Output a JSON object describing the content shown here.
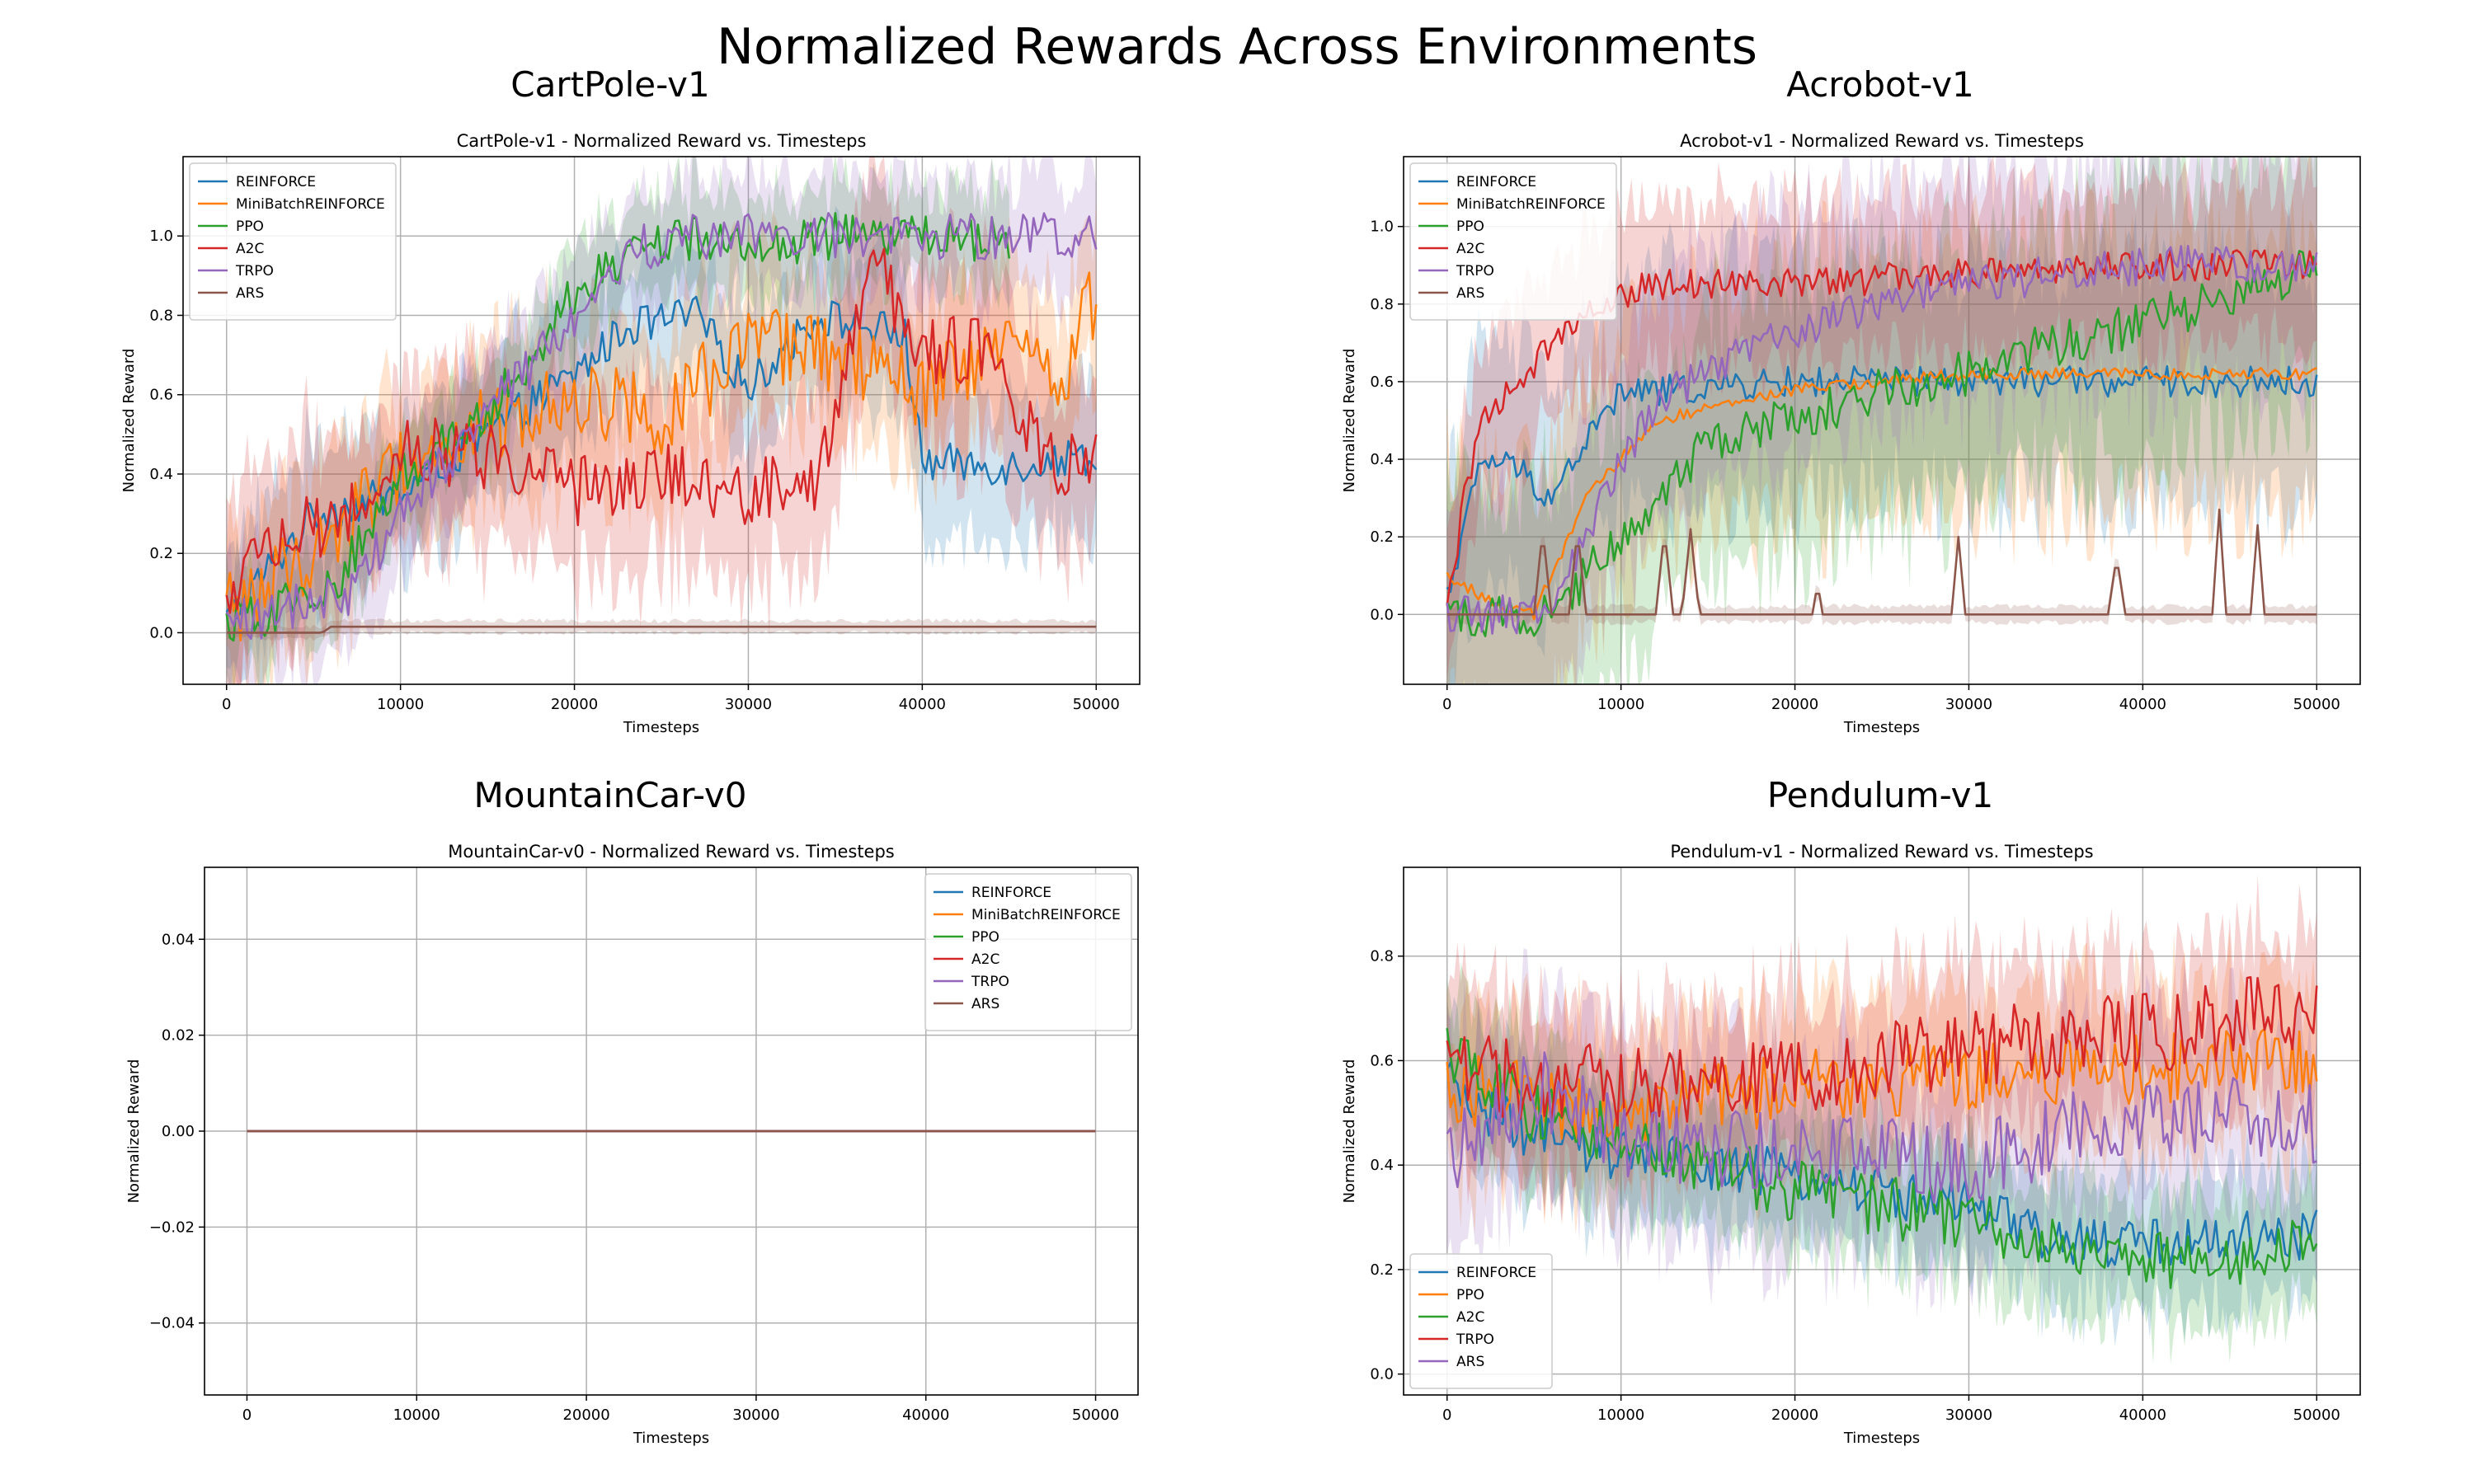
{
  "figure": {
    "suptitle": "Normalized Rewards Across Environments"
  },
  "chart_data": [
    {
      "id": "cartpole",
      "type": "line",
      "panel_title": "CartPole-v1",
      "title": "CartPole-v1 - Normalized Reward vs. Timesteps",
      "xlabel": "Timesteps",
      "ylabel": "Normalized Reward",
      "xlim": [
        -2500,
        52500
      ],
      "ylim": [
        -0.13,
        1.2
      ],
      "xticks": [
        0,
        10000,
        20000,
        30000,
        40000,
        50000
      ],
      "yticks": [
        0.0,
        0.2,
        0.4,
        0.6,
        0.8,
        1.0
      ],
      "ytick_labels": [
        "0.0",
        "0.2",
        "0.4",
        "0.6",
        "0.8",
        "1.0"
      ],
      "grid": true,
      "legend_position": "top-left",
      "series": [
        {
          "name": "REINFORCE",
          "color": "#1f77b4",
          "noise": 0.05,
          "band": 0.18,
          "x": [
            0,
            5000,
            10000,
            15000,
            20000,
            23000,
            27000,
            30000,
            34000,
            39000,
            40000,
            45000,
            50000
          ],
          "y": [
            0.03,
            0.3,
            0.35,
            0.5,
            0.65,
            0.77,
            0.8,
            0.62,
            0.8,
            0.75,
            0.43,
            0.42,
            0.45
          ]
        },
        {
          "name": "MiniBatchREINFORCE",
          "color": "#ff7f0e",
          "noise": 0.1,
          "band": 0.2,
          "x": [
            0,
            5000,
            10000,
            15000,
            20000,
            25000,
            30000,
            35000,
            40000,
            45000,
            48000,
            50000
          ],
          "y": [
            0.05,
            0.2,
            0.42,
            0.52,
            0.6,
            0.55,
            0.72,
            0.7,
            0.6,
            0.72,
            0.65,
            0.85
          ]
        },
        {
          "name": "PPO",
          "color": "#2ca02c",
          "noise": 0.06,
          "band": 0.12,
          "x": [
            0,
            6000,
            10000,
            15000,
            20000,
            23000,
            26000,
            30000,
            35000,
            40000,
            45000
          ],
          "y": [
            0.02,
            0.1,
            0.4,
            0.55,
            0.85,
            0.95,
            1.0,
            0.97,
            1.0,
            1.0,
            0.99
          ]
        },
        {
          "name": "A2C",
          "color": "#d62728",
          "noise": 0.09,
          "band": 0.22,
          "x": [
            0,
            3000,
            7000,
            10000,
            15000,
            20000,
            25000,
            30000,
            34000,
            37000,
            40000,
            44000,
            47000,
            50000
          ],
          "y": [
            0.05,
            0.25,
            0.3,
            0.45,
            0.45,
            0.35,
            0.4,
            0.35,
            0.4,
            0.95,
            0.7,
            0.72,
            0.42,
            0.42
          ]
        },
        {
          "name": "TRPO",
          "color": "#9467bd",
          "noise": 0.06,
          "band": 0.15,
          "x": [
            0,
            7000,
            11000,
            16000,
            20000,
            24000,
            27000,
            30000,
            40000,
            50000
          ],
          "y": [
            0.02,
            0.1,
            0.35,
            0.6,
            0.8,
            0.97,
            1.0,
            1.0,
            1.0,
            1.0
          ]
        },
        {
          "name": "ARS",
          "color": "#8c564b",
          "noise": 0.0,
          "band": 0.015,
          "x": [
            0,
            3000,
            5500,
            6000,
            50000
          ],
          "y": [
            0.0,
            0.0,
            0.0,
            0.015,
            0.015
          ]
        }
      ]
    },
    {
      "id": "acrobot",
      "type": "line",
      "panel_title": "Acrobot-v1",
      "title": "Acrobot-v1 - Normalized Reward vs. Timesteps",
      "xlabel": "Timesteps",
      "ylabel": "Normalized Reward",
      "xlim": [
        -2500,
        52500
      ],
      "ylim": [
        -0.18,
        1.18
      ],
      "xticks": [
        0,
        10000,
        20000,
        30000,
        40000,
        50000
      ],
      "yticks": [
        0.0,
        0.2,
        0.4,
        0.6,
        0.8,
        1.0
      ],
      "ytick_labels": [
        "0.0",
        "0.2",
        "0.4",
        "0.6",
        "0.8",
        "1.0"
      ],
      "grid": true,
      "legend_position": "top-left",
      "series": [
        {
          "name": "REINFORCE",
          "color": "#1f77b4",
          "noise": 0.04,
          "band": 0.3,
          "x": [
            0,
            2000,
            4000,
            6000,
            8000,
            10000,
            20000,
            30000,
            40000,
            50000
          ],
          "y": [
            0.05,
            0.4,
            0.38,
            0.3,
            0.45,
            0.57,
            0.6,
            0.6,
            0.6,
            0.6
          ]
        },
        {
          "name": "MiniBatchREINFORCE",
          "color": "#ff7f0e",
          "noise": 0.015,
          "band": 0.35,
          "x": [
            0,
            3000,
            5000,
            8000,
            12000,
            20000,
            30000,
            40000,
            50000
          ],
          "y": [
            0.1,
            0.02,
            0.0,
            0.3,
            0.5,
            0.58,
            0.62,
            0.62,
            0.62
          ]
        },
        {
          "name": "PPO",
          "color": "#2ca02c",
          "noise": 0.06,
          "band": 0.35,
          "x": [
            0,
            6000,
            10000,
            15000,
            20000,
            25000,
            30000,
            35000,
            40000,
            45000,
            50000
          ],
          "y": [
            0.0,
            0.0,
            0.2,
            0.45,
            0.5,
            0.58,
            0.62,
            0.7,
            0.75,
            0.82,
            0.9
          ]
        },
        {
          "name": "A2C",
          "color": "#d62728",
          "noise": 0.04,
          "band": 0.2,
          "x": [
            0,
            1000,
            2000,
            5000,
            8000,
            12000,
            20000,
            30000,
            40000,
            50000
          ],
          "y": [
            0.0,
            0.3,
            0.5,
            0.65,
            0.8,
            0.85,
            0.85,
            0.88,
            0.9,
            0.9
          ]
        },
        {
          "name": "TRPO",
          "color": "#9467bd",
          "noise": 0.05,
          "band": 0.3,
          "x": [
            0,
            6000,
            9000,
            12000,
            18000,
            25000,
            30000,
            40000,
            50000
          ],
          "y": [
            0.0,
            0.0,
            0.3,
            0.55,
            0.7,
            0.8,
            0.85,
            0.9,
            0.9
          ]
        },
        {
          "name": "ARS",
          "color": "#8c564b",
          "noise": 0.0,
          "band": 0.02,
          "x": [
            0,
            1000,
            5000,
            5500,
            6000,
            7000,
            7500,
            8000,
            12000,
            12500,
            13000,
            13500,
            14000,
            14500,
            21000,
            21300,
            21600,
            29000,
            29400,
            29800,
            38000,
            38500,
            39000,
            44000,
            44400,
            44800,
            46200,
            46600,
            47000,
            50000
          ],
          "y": [
            0.0,
            0.0,
            0.0,
            0.22,
            0.0,
            0.0,
            0.22,
            0.0,
            0.0,
            0.22,
            0.0,
            0.0,
            0.22,
            0.0,
            0.0,
            0.08,
            0.0,
            0.0,
            0.2,
            0.0,
            0.0,
            0.15,
            0.0,
            0.0,
            0.27,
            0.0,
            0.0,
            0.23,
            0.0,
            0.0
          ]
        }
      ]
    },
    {
      "id": "mountaincar",
      "type": "line",
      "panel_title": "MountainCar-v0",
      "title": "MountainCar-v0 - Normalized Reward vs. Timesteps",
      "xlabel": "Timesteps",
      "ylabel": "Normalized Reward",
      "xlim": [
        -2500,
        52500
      ],
      "ylim": [
        -0.055,
        0.055
      ],
      "xticks": [
        0,
        10000,
        20000,
        30000,
        40000,
        50000
      ],
      "yticks": [
        -0.04,
        -0.02,
        0.0,
        0.02,
        0.04
      ],
      "ytick_labels": [
        "−0.04",
        "−0.02",
        "0.00",
        "0.02",
        "0.04"
      ],
      "grid": true,
      "legend_position": "top-right",
      "series": [
        {
          "name": "REINFORCE",
          "color": "#1f77b4",
          "noise": 0.0,
          "band": 0.0,
          "x": [
            0,
            50000
          ],
          "y": [
            0.0,
            0.0
          ]
        },
        {
          "name": "MiniBatchREINFORCE",
          "color": "#ff7f0e",
          "noise": 0.0,
          "band": 0.0,
          "x": [
            0,
            50000
          ],
          "y": [
            0.0,
            0.0
          ]
        },
        {
          "name": "PPO",
          "color": "#2ca02c",
          "noise": 0.0,
          "band": 0.0,
          "x": [
            0,
            50000
          ],
          "y": [
            0.0,
            0.0
          ]
        },
        {
          "name": "A2C",
          "color": "#d62728",
          "noise": 0.0,
          "band": 0.0,
          "x": [
            0,
            50000
          ],
          "y": [
            0.0,
            0.0
          ]
        },
        {
          "name": "TRPO",
          "color": "#9467bd",
          "noise": 0.0,
          "band": 0.0,
          "x": [
            0,
            50000
          ],
          "y": [
            0.0,
            0.0
          ]
        },
        {
          "name": "ARS",
          "color": "#8c564b",
          "noise": 0.0,
          "band": 0.0,
          "x": [
            0,
            50000
          ],
          "y": [
            0.0,
            0.0
          ]
        }
      ]
    },
    {
      "id": "pendulum",
      "type": "line",
      "panel_title": "Pendulum-v1",
      "title": "Pendulum-v1 - Normalized Reward vs. Timesteps",
      "xlabel": "Timesteps",
      "ylabel": "Normalized Reward",
      "xlim": [
        -2500,
        52500
      ],
      "ylim": [
        -0.04,
        0.97
      ],
      "xticks": [
        0,
        10000,
        20000,
        30000,
        40000,
        50000
      ],
      "yticks": [
        0.0,
        0.2,
        0.4,
        0.6,
        0.8
      ],
      "ytick_labels": [
        "0.0",
        "0.2",
        "0.4",
        "0.6",
        "0.8"
      ],
      "grid": true,
      "legend_position": "bottom-left",
      "series": [
        {
          "name": "REINFORCE",
          "color": "#1f77b4",
          "noise": 0.05,
          "band": 0.12,
          "x": [
            0,
            5000,
            10000,
            20000,
            30000,
            35000,
            40000,
            45000,
            50000
          ],
          "y": [
            0.55,
            0.45,
            0.42,
            0.38,
            0.32,
            0.25,
            0.25,
            0.26,
            0.27
          ]
        },
        {
          "name": "PPO",
          "color": "#ff7f0e",
          "noise": 0.07,
          "band": 0.15,
          "x": [
            0,
            10000,
            20000,
            30000,
            40000,
            50000
          ],
          "y": [
            0.55,
            0.5,
            0.55,
            0.57,
            0.58,
            0.6
          ]
        },
        {
          "name": "A2C",
          "color": "#2ca02c",
          "noise": 0.06,
          "band": 0.12,
          "x": [
            0,
            5000,
            10000,
            20000,
            25000,
            30000,
            35000,
            40000,
            45000,
            50000
          ],
          "y": [
            0.62,
            0.5,
            0.45,
            0.35,
            0.32,
            0.3,
            0.25,
            0.22,
            0.22,
            0.25
          ]
        },
        {
          "name": "TRPO",
          "color": "#d62728",
          "noise": 0.08,
          "band": 0.15,
          "x": [
            0,
            10000,
            20000,
            30000,
            40000,
            50000
          ],
          "y": [
            0.58,
            0.55,
            0.58,
            0.62,
            0.65,
            0.7
          ]
        },
        {
          "name": "ARS",
          "color": "#9467bd",
          "noise": 0.08,
          "band": 0.18,
          "x": [
            0,
            5000,
            10000,
            20000,
            30000,
            40000,
            50000
          ],
          "y": [
            0.4,
            0.55,
            0.45,
            0.42,
            0.4,
            0.5,
            0.48
          ]
        }
      ]
    }
  ]
}
